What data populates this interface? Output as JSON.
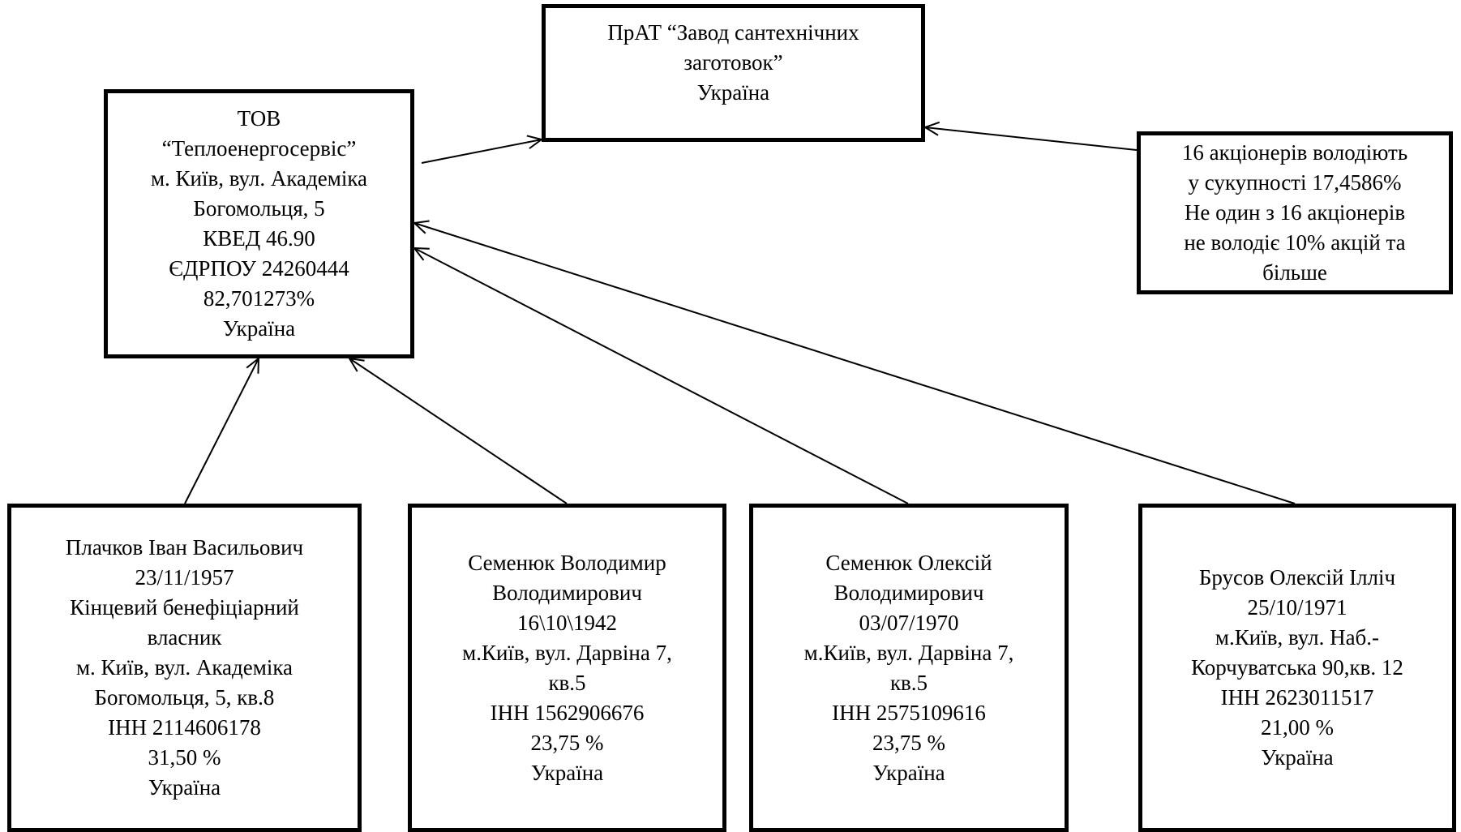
{
  "diagram": {
    "nodes": {
      "target": {
        "lines": [
          "ПрАТ “Завод сантехнічних",
          "заготовок”",
          "Україна"
        ]
      },
      "tov": {
        "lines": [
          "ТОВ",
          "“Теплоенергосервіс”",
          "м. Київ, вул. Академіка",
          "Богомольця, 5",
          "КВЕД 46.90",
          "ЄДРПОУ 24260444",
          "82,701273%",
          "Україна"
        ]
      },
      "minority": {
        "lines": [
          "16 акціонерів володіють",
          "у сукупності 17,4586%",
          "Не один з 16 акціонерів",
          "не володіє 10% акцій та",
          "більше"
        ]
      },
      "p1": {
        "lines": [
          "Плачков Іван Васильович",
          "23/11/1957",
          "Кінцевий бенефіціарний",
          "власник",
          "м. Київ, вул. Академіка",
          "Богомольця, 5, кв.8",
          "ІНН 2114606178",
          "31,50 %",
          "Україна"
        ]
      },
      "p2": {
        "lines": [
          "Семенюк Володимир",
          "Володимирович",
          "16\\10\\1942",
          "м.Київ, вул. Дарвіна 7,",
          "кв.5",
          "ІНН 1562906676",
          "23,75 %",
          "Україна"
        ]
      },
      "p3": {
        "lines": [
          "Семенюк Олексій",
          "Володимирович",
          "03/07/1970",
          "м.Київ, вул. Дарвіна 7,",
          "кв.5",
          "ІНН 2575109616",
          "23,75 %",
          "Україна"
        ]
      },
      "p4": {
        "lines": [
          "Брусов Олексій Ілліч",
          "25/10/1971",
          "м.Київ, вул. Наб.-",
          "Корчуватська 90,кв. 12",
          "ІНН 2623011517",
          "21,00 %",
          "Україна"
        ]
      }
    },
    "edges": [
      {
        "from": "tov",
        "to": "target"
      },
      {
        "from": "minority",
        "to": "target"
      },
      {
        "from": "p1",
        "to": "tov"
      },
      {
        "from": "p2",
        "to": "tov"
      },
      {
        "from": "p3",
        "to": "tov"
      },
      {
        "from": "p4",
        "to": "tov"
      }
    ]
  }
}
